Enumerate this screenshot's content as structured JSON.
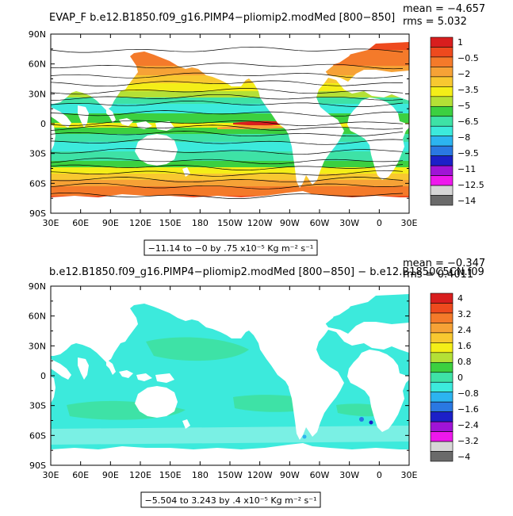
{
  "panels": [
    {
      "title": "EVAP_F b.e12.B1850.f09_g16.PIMP4−pliomip2.modMed [800−850]",
      "mean_label": "mean = −4.657",
      "rms_label": "rms = 5.032",
      "lat_labels": [
        "90N",
        "60N",
        "30N",
        "0",
        "30S",
        "60S",
        "90S"
      ],
      "lon_labels": [
        "30E",
        "60E",
        "90E",
        "120E",
        "150E",
        "180",
        "150W",
        "120W",
        "90W",
        "60W",
        "30W",
        "0",
        "30E"
      ],
      "colorbar_labels": [
        "1",
        "−0.5",
        "−2",
        "−3.5",
        "−5",
        "−6.5",
        "−8",
        "−9.5",
        "−11",
        "−12.5",
        "−14"
      ],
      "colorbar_colors": [
        "#d81e1e",
        "#ee4a1e",
        "#f47a2a",
        "#f6a236",
        "#f8c830",
        "#f4ee18",
        "#b4e036",
        "#3cd040",
        "#3ee2a6",
        "#3ceadc",
        "#2cb4f0",
        "#2a78e2",
        "#1c20c8",
        "#a014d6",
        "#ee18ec",
        "#d6d6d6",
        "#6a6a6a"
      ],
      "range_text": "−11.14 to −0 by .75 x10⁻⁵ Kg m⁻² s⁻¹"
    },
    {
      "title": "b.e12.B1850.f09_g16.PIMP4−pliomip2.modMed [800−850] − b.e12.B1850C5CN.f09",
      "mean_label": "mean = −0.347",
      "rms_label": "rms = 0.4011",
      "lat_labels": [
        "90N",
        "60N",
        "30N",
        "0",
        "30S",
        "60S",
        "90S"
      ],
      "lon_labels": [
        "30E",
        "60E",
        "90E",
        "120E",
        "150E",
        "180",
        "150W",
        "120W",
        "90W",
        "60W",
        "30W",
        "0",
        "30E"
      ],
      "colorbar_labels": [
        "4",
        "3.2",
        "2.4",
        "1.6",
        "0.8",
        "0",
        "−0.8",
        "−1.6",
        "−2.4",
        "−3.2",
        "−4"
      ],
      "colorbar_colors": [
        "#d81e1e",
        "#ee4a1e",
        "#f47a2a",
        "#f6a236",
        "#f8c830",
        "#f4ee18",
        "#b4e036",
        "#3cd040",
        "#3ee2a6",
        "#3ceadc",
        "#2cb4f0",
        "#2a78e2",
        "#1c20c8",
        "#a014d6",
        "#ee18ec",
        "#d6d6d6",
        "#6a6a6a"
      ],
      "range_text": "−5.504 to 3.243 by .4 x10⁻⁵ Kg m⁻² s⁻¹"
    }
  ],
  "colors": {
    "land": "#ffffff",
    "top_ocean_bands": [
      "#ee4a1e",
      "#f47a2a",
      "#f6a236",
      "#f8c830",
      "#f4ee18",
      "#b4e036",
      "#3cd040",
      "#3ee2a6",
      "#3ceadc"
    ],
    "bottom_ocean_base": "#3ceadc",
    "bottom_ocean_alt": "#3ee2a6",
    "bottom_ocean_pale": "#7af0e4"
  }
}
